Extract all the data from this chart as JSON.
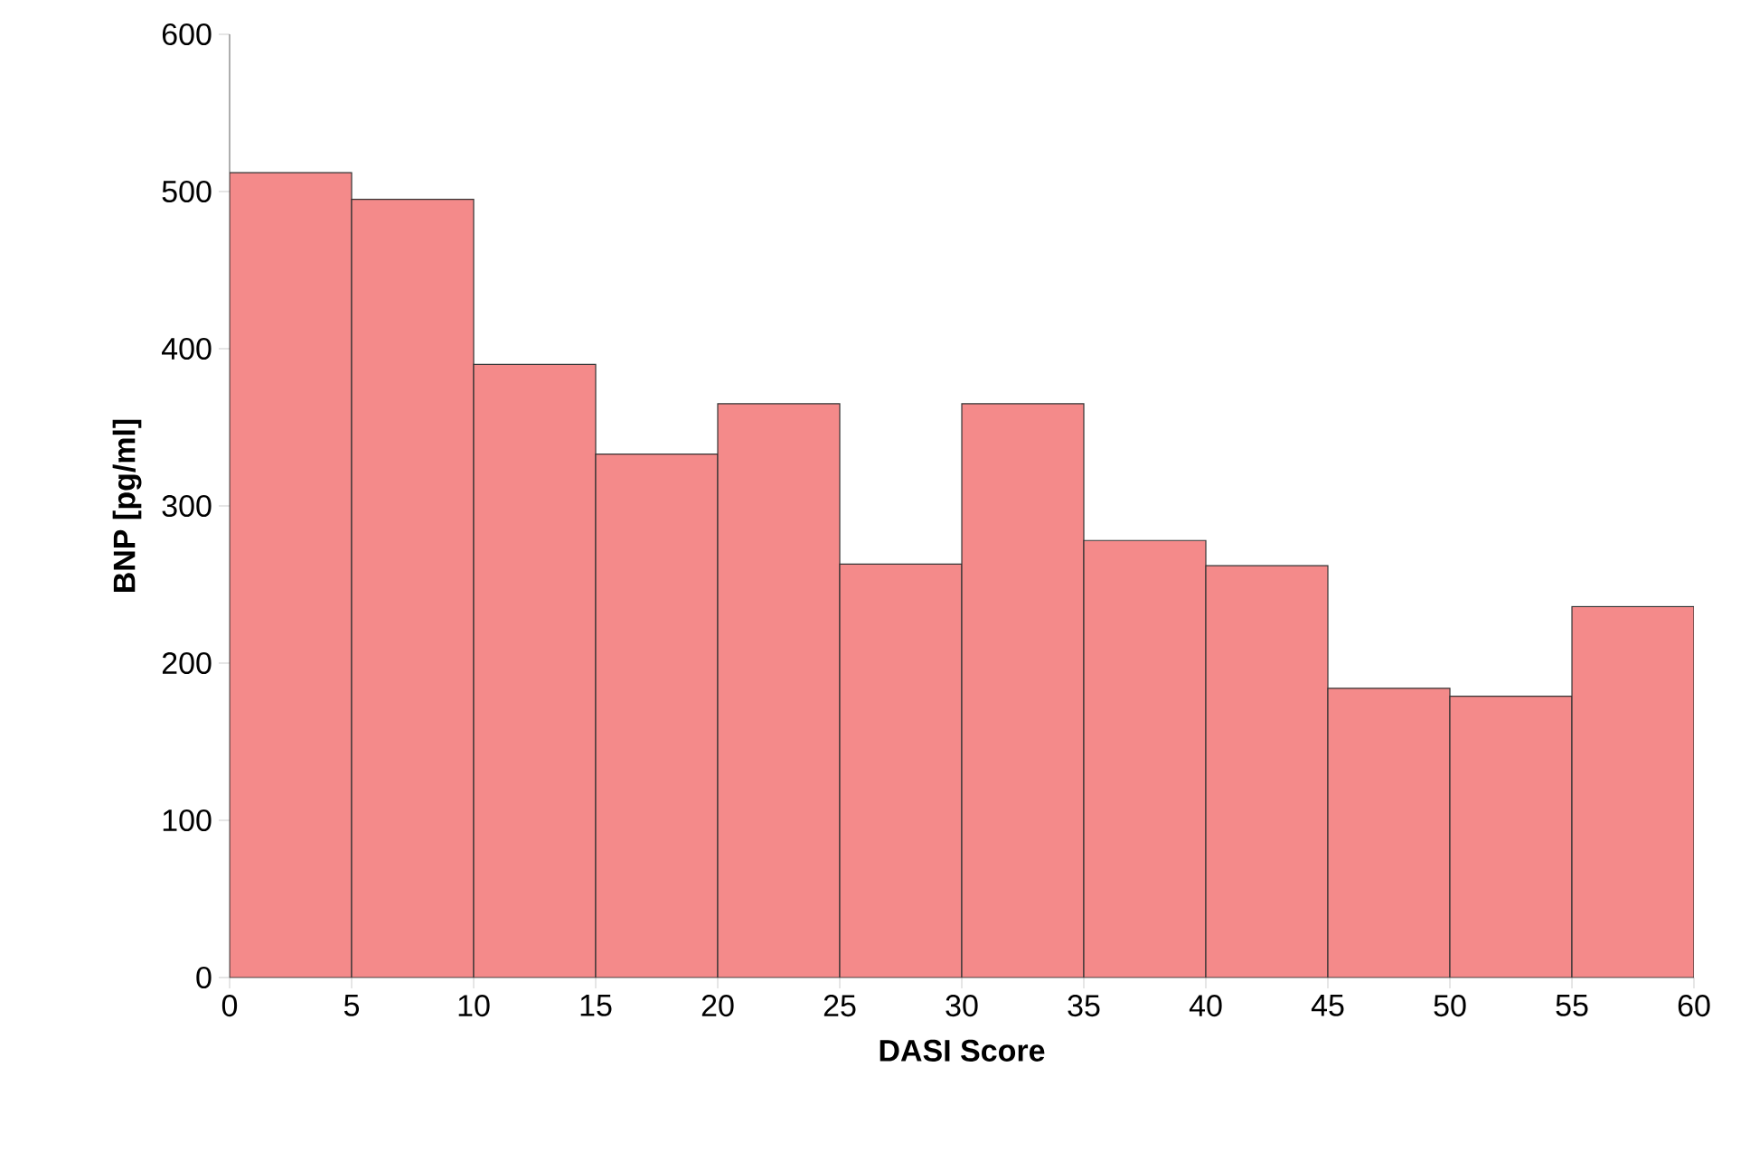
{
  "chart_data": {
    "type": "histogram",
    "xlabel": "DASI Score",
    "ylabel": "BNP [pg/ml]",
    "bins": [
      0,
      5,
      10,
      15,
      20,
      25,
      30,
      35,
      40,
      45,
      50,
      55,
      60
    ],
    "values": [
      512,
      495,
      390,
      333,
      365,
      263,
      365,
      278,
      262,
      184,
      179,
      236
    ],
    "color": "#f48a8a",
    "xlim": [
      0,
      60
    ],
    "xticks": [
      0,
      5,
      10,
      15,
      20,
      25,
      30,
      35,
      40,
      45,
      50,
      55,
      60
    ],
    "ylim": [
      0,
      600
    ],
    "yticks": [
      0,
      100,
      200,
      300,
      400,
      500,
      600
    ]
  }
}
